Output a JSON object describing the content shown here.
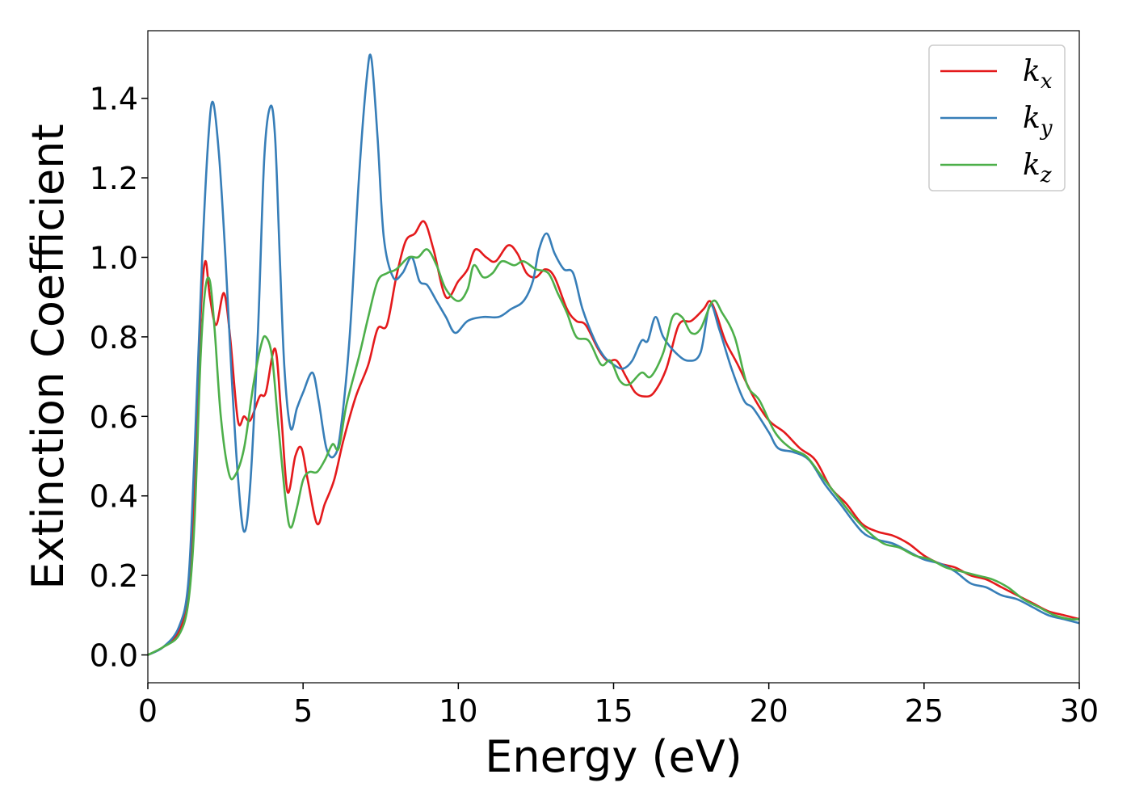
{
  "chart_data": {
    "type": "line",
    "title": "",
    "xlabel": "Energy (eV)",
    "ylabel": "Extinction Coefficient",
    "xlim": [
      0,
      30
    ],
    "ylim": [
      -0.07,
      1.57
    ],
    "xticks": [
      0,
      5,
      10,
      15,
      20,
      25,
      30
    ],
    "yticks": [
      0.0,
      0.2,
      0.4,
      0.6,
      0.8,
      1.0,
      1.2,
      1.4
    ],
    "xtick_labels": [
      "0",
      "5",
      "10",
      "15",
      "20",
      "25",
      "30"
    ],
    "ytick_labels": [
      "0.0",
      "0.2",
      "0.4",
      "0.6",
      "0.8",
      "1.0",
      "1.2",
      "1.4"
    ],
    "grid": false,
    "legend_position": "top-right",
    "series": [
      {
        "name": "k_x",
        "label_main": "k",
        "label_sub": "x",
        "color": "#e41a1c",
        "points": [
          [
            0,
            0.0
          ],
          [
            0.5,
            0.02
          ],
          [
            1.0,
            0.06
          ],
          [
            1.3,
            0.15
          ],
          [
            1.5,
            0.4
          ],
          [
            1.7,
            0.85
          ],
          [
            1.85,
            0.99
          ],
          [
            2.0,
            0.9
          ],
          [
            2.2,
            0.83
          ],
          [
            2.45,
            0.91
          ],
          [
            2.65,
            0.8
          ],
          [
            2.9,
            0.59
          ],
          [
            3.1,
            0.6
          ],
          [
            3.3,
            0.59
          ],
          [
            3.6,
            0.65
          ],
          [
            3.8,
            0.66
          ],
          [
            4.1,
            0.77
          ],
          [
            4.3,
            0.6
          ],
          [
            4.5,
            0.41
          ],
          [
            4.75,
            0.5
          ],
          [
            4.95,
            0.52
          ],
          [
            5.15,
            0.44
          ],
          [
            5.45,
            0.33
          ],
          [
            5.7,
            0.38
          ],
          [
            6.0,
            0.44
          ],
          [
            6.3,
            0.54
          ],
          [
            6.7,
            0.65
          ],
          [
            7.1,
            0.73
          ],
          [
            7.4,
            0.82
          ],
          [
            7.7,
            0.83
          ],
          [
            8.0,
            0.95
          ],
          [
            8.3,
            1.04
          ],
          [
            8.6,
            1.06
          ],
          [
            8.9,
            1.09
          ],
          [
            9.2,
            1.02
          ],
          [
            9.6,
            0.9
          ],
          [
            10.0,
            0.94
          ],
          [
            10.3,
            0.97
          ],
          [
            10.55,
            1.02
          ],
          [
            10.9,
            1.0
          ],
          [
            11.2,
            0.99
          ],
          [
            11.6,
            1.03
          ],
          [
            11.9,
            1.01
          ],
          [
            12.2,
            0.96
          ],
          [
            12.5,
            0.95
          ],
          [
            12.8,
            0.97
          ],
          [
            13.1,
            0.95
          ],
          [
            13.5,
            0.87
          ],
          [
            13.8,
            0.84
          ],
          [
            14.1,
            0.83
          ],
          [
            14.5,
            0.77
          ],
          [
            14.8,
            0.74
          ],
          [
            15.1,
            0.74
          ],
          [
            15.4,
            0.7
          ],
          [
            15.7,
            0.66
          ],
          [
            16.0,
            0.65
          ],
          [
            16.3,
            0.66
          ],
          [
            16.7,
            0.72
          ],
          [
            17.1,
            0.83
          ],
          [
            17.5,
            0.84
          ],
          [
            17.9,
            0.87
          ],
          [
            18.1,
            0.89
          ],
          [
            18.3,
            0.86
          ],
          [
            18.6,
            0.79
          ],
          [
            19.0,
            0.73
          ],
          [
            19.5,
            0.65
          ],
          [
            20.0,
            0.59
          ],
          [
            20.5,
            0.56
          ],
          [
            21.0,
            0.52
          ],
          [
            21.5,
            0.49
          ],
          [
            22.0,
            0.42
          ],
          [
            22.5,
            0.38
          ],
          [
            23.0,
            0.33
          ],
          [
            23.5,
            0.31
          ],
          [
            24.0,
            0.3
          ],
          [
            24.5,
            0.28
          ],
          [
            25.0,
            0.25
          ],
          [
            25.5,
            0.23
          ],
          [
            26.0,
            0.22
          ],
          [
            26.5,
            0.2
          ],
          [
            27.0,
            0.19
          ],
          [
            27.5,
            0.17
          ],
          [
            28.0,
            0.15
          ],
          [
            28.5,
            0.13
          ],
          [
            29.0,
            0.11
          ],
          [
            29.5,
            0.1
          ],
          [
            30.0,
            0.09
          ]
        ]
      },
      {
        "name": "k_y",
        "label_main": "k",
        "label_sub": "y",
        "color": "#377eb8",
        "points": [
          [
            0,
            0.0
          ],
          [
            0.5,
            0.02
          ],
          [
            1.0,
            0.07
          ],
          [
            1.3,
            0.18
          ],
          [
            1.5,
            0.5
          ],
          [
            1.75,
            1.0
          ],
          [
            1.95,
            1.3
          ],
          [
            2.1,
            1.39
          ],
          [
            2.3,
            1.25
          ],
          [
            2.5,
            1.0
          ],
          [
            2.7,
            0.7
          ],
          [
            2.9,
            0.45
          ],
          [
            3.1,
            0.31
          ],
          [
            3.3,
            0.43
          ],
          [
            3.55,
            0.82
          ],
          [
            3.75,
            1.25
          ],
          [
            3.95,
            1.38
          ],
          [
            4.1,
            1.3
          ],
          [
            4.25,
            1.0
          ],
          [
            4.4,
            0.72
          ],
          [
            4.6,
            0.57
          ],
          [
            4.8,
            0.62
          ],
          [
            5.0,
            0.66
          ],
          [
            5.3,
            0.71
          ],
          [
            5.5,
            0.64
          ],
          [
            5.75,
            0.52
          ],
          [
            6.0,
            0.5
          ],
          [
            6.2,
            0.56
          ],
          [
            6.5,
            0.8
          ],
          [
            6.8,
            1.2
          ],
          [
            7.05,
            1.45
          ],
          [
            7.2,
            1.5
          ],
          [
            7.4,
            1.3
          ],
          [
            7.6,
            1.05
          ],
          [
            7.9,
            0.95
          ],
          [
            8.2,
            0.96
          ],
          [
            8.5,
            1.0
          ],
          [
            8.75,
            0.94
          ],
          [
            9.0,
            0.93
          ],
          [
            9.3,
            0.89
          ],
          [
            9.6,
            0.85
          ],
          [
            9.9,
            0.81
          ],
          [
            10.3,
            0.84
          ],
          [
            10.8,
            0.85
          ],
          [
            11.3,
            0.85
          ],
          [
            11.7,
            0.87
          ],
          [
            12.1,
            0.89
          ],
          [
            12.4,
            0.94
          ],
          [
            12.6,
            1.02
          ],
          [
            12.85,
            1.06
          ],
          [
            13.1,
            1.01
          ],
          [
            13.4,
            0.97
          ],
          [
            13.7,
            0.96
          ],
          [
            14.0,
            0.87
          ],
          [
            14.4,
            0.79
          ],
          [
            14.7,
            0.75
          ],
          [
            15.0,
            0.73
          ],
          [
            15.3,
            0.72
          ],
          [
            15.6,
            0.74
          ],
          [
            15.9,
            0.79
          ],
          [
            16.1,
            0.79
          ],
          [
            16.35,
            0.85
          ],
          [
            16.6,
            0.8
          ],
          [
            17.0,
            0.76
          ],
          [
            17.4,
            0.74
          ],
          [
            17.8,
            0.76
          ],
          [
            18.1,
            0.88
          ],
          [
            18.4,
            0.82
          ],
          [
            18.8,
            0.72
          ],
          [
            19.2,
            0.64
          ],
          [
            19.5,
            0.62
          ],
          [
            20.0,
            0.56
          ],
          [
            20.3,
            0.52
          ],
          [
            20.8,
            0.51
          ],
          [
            21.3,
            0.49
          ],
          [
            21.8,
            0.43
          ],
          [
            22.3,
            0.38
          ],
          [
            23.0,
            0.31
          ],
          [
            23.5,
            0.29
          ],
          [
            24.0,
            0.28
          ],
          [
            24.5,
            0.26
          ],
          [
            25.0,
            0.24
          ],
          [
            25.5,
            0.23
          ],
          [
            26.0,
            0.21
          ],
          [
            26.5,
            0.18
          ],
          [
            27.0,
            0.17
          ],
          [
            27.5,
            0.15
          ],
          [
            28.0,
            0.14
          ],
          [
            28.5,
            0.12
          ],
          [
            29.0,
            0.1
          ],
          [
            29.5,
            0.09
          ],
          [
            30.0,
            0.08
          ]
        ]
      },
      {
        "name": "k_z",
        "label_main": "k",
        "label_sub": "z",
        "color": "#4daf4a",
        "points": [
          [
            0,
            0.0
          ],
          [
            0.5,
            0.02
          ],
          [
            1.0,
            0.05
          ],
          [
            1.3,
            0.13
          ],
          [
            1.5,
            0.33
          ],
          [
            1.7,
            0.75
          ],
          [
            1.85,
            0.92
          ],
          [
            2.0,
            0.94
          ],
          [
            2.15,
            0.82
          ],
          [
            2.35,
            0.6
          ],
          [
            2.6,
            0.46
          ],
          [
            2.8,
            0.45
          ],
          [
            3.1,
            0.52
          ],
          [
            3.4,
            0.68
          ],
          [
            3.65,
            0.78
          ],
          [
            3.8,
            0.8
          ],
          [
            4.0,
            0.75
          ],
          [
            4.2,
            0.58
          ],
          [
            4.45,
            0.38
          ],
          [
            4.6,
            0.32
          ],
          [
            4.8,
            0.37
          ],
          [
            5.0,
            0.44
          ],
          [
            5.2,
            0.46
          ],
          [
            5.45,
            0.46
          ],
          [
            5.7,
            0.49
          ],
          [
            5.95,
            0.53
          ],
          [
            6.15,
            0.52
          ],
          [
            6.4,
            0.63
          ],
          [
            6.8,
            0.75
          ],
          [
            7.1,
            0.85
          ],
          [
            7.4,
            0.94
          ],
          [
            7.7,
            0.96
          ],
          [
            8.0,
            0.97
          ],
          [
            8.4,
            1.0
          ],
          [
            8.7,
            1.0
          ],
          [
            9.0,
            1.02
          ],
          [
            9.3,
            0.98
          ],
          [
            9.6,
            0.92
          ],
          [
            10.0,
            0.89
          ],
          [
            10.3,
            0.92
          ],
          [
            10.5,
            0.98
          ],
          [
            10.8,
            0.95
          ],
          [
            11.1,
            0.96
          ],
          [
            11.4,
            0.99
          ],
          [
            11.8,
            0.98
          ],
          [
            12.1,
            0.99
          ],
          [
            12.5,
            0.97
          ],
          [
            12.9,
            0.96
          ],
          [
            13.2,
            0.91
          ],
          [
            13.5,
            0.86
          ],
          [
            13.8,
            0.8
          ],
          [
            14.2,
            0.79
          ],
          [
            14.6,
            0.73
          ],
          [
            14.9,
            0.74
          ],
          [
            15.2,
            0.69
          ],
          [
            15.5,
            0.68
          ],
          [
            15.9,
            0.71
          ],
          [
            16.2,
            0.7
          ],
          [
            16.6,
            0.76
          ],
          [
            16.9,
            0.85
          ],
          [
            17.2,
            0.85
          ],
          [
            17.5,
            0.81
          ],
          [
            17.8,
            0.82
          ],
          [
            18.2,
            0.89
          ],
          [
            18.5,
            0.86
          ],
          [
            18.9,
            0.8
          ],
          [
            19.3,
            0.68
          ],
          [
            19.7,
            0.64
          ],
          [
            20.2,
            0.56
          ],
          [
            20.7,
            0.52
          ],
          [
            21.2,
            0.5
          ],
          [
            21.7,
            0.45
          ],
          [
            22.2,
            0.4
          ],
          [
            22.7,
            0.35
          ],
          [
            23.2,
            0.31
          ],
          [
            23.7,
            0.28
          ],
          [
            24.2,
            0.27
          ],
          [
            24.7,
            0.25
          ],
          [
            25.2,
            0.24
          ],
          [
            25.7,
            0.22
          ],
          [
            26.2,
            0.21
          ],
          [
            26.7,
            0.2
          ],
          [
            27.2,
            0.19
          ],
          [
            27.7,
            0.17
          ],
          [
            28.2,
            0.14
          ],
          [
            28.7,
            0.12
          ],
          [
            29.2,
            0.1
          ],
          [
            29.7,
            0.09
          ],
          [
            30.0,
            0.09
          ]
        ]
      }
    ]
  }
}
